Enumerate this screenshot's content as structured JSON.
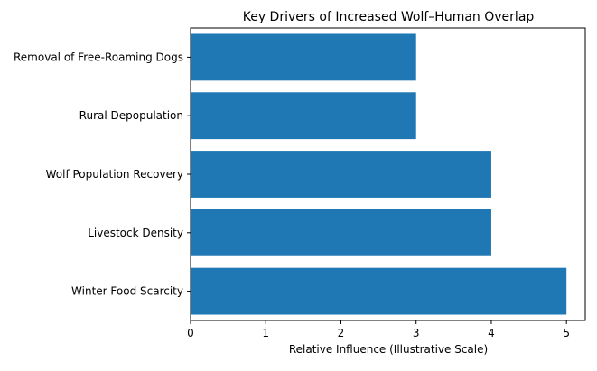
{
  "chart_data": {
    "type": "bar",
    "orientation": "horizontal",
    "title": "Key Drivers of Increased Wolf–Human Overlap",
    "xlabel": "Relative Influence (Illustrative Scale)",
    "ylabel": "",
    "categories": [
      "Winter Food Scarcity",
      "Livestock Density",
      "Wolf Population Recovery",
      "Rural Depopulation",
      "Removal of Free-Roaming Dogs"
    ],
    "values": [
      5,
      4,
      4,
      3,
      3
    ],
    "xlim": [
      0,
      5.25
    ],
    "xticks": [
      "0",
      "1",
      "2",
      "3",
      "4",
      "5"
    ],
    "grid": false,
    "legend": "none",
    "bar_color": "#1f77b4"
  }
}
